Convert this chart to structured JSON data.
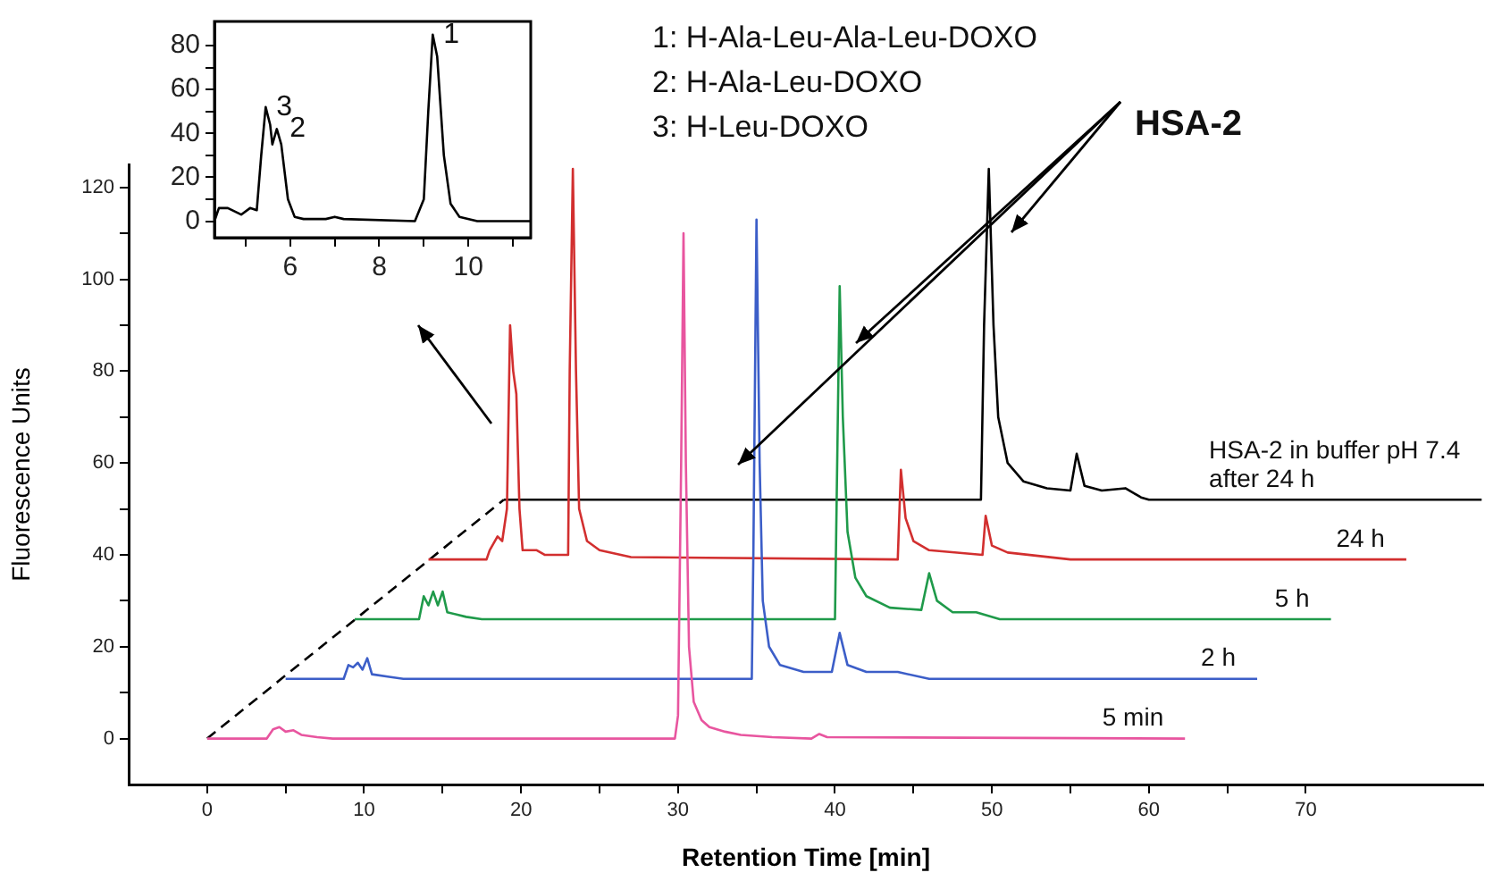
{
  "chart_data": [
    {
      "type": "line",
      "xlabel": "Retention Time [min]",
      "ylabel": "Fluorescence Units",
      "xlim": [
        -5,
        81.3
      ],
      "ylim": [
        -10,
        125
      ],
      "xticks": [
        0,
        {
          "value": 5,
          "label": null
        },
        10,
        {
          "value": 15,
          "label": null
        },
        20,
        {
          "value": 25,
          "label": null
        },
        30,
        {
          "value": 35,
          "label": null
        },
        40,
        {
          "value": 45,
          "label": null
        },
        50,
        {
          "value": 55,
          "label": null
        },
        60,
        {
          "value": 65,
          "label": null
        },
        70
      ],
      "yticks": [
        0,
        {
          "value": 10,
          "label": null
        },
        20,
        {
          "value": 30,
          "label": null
        },
        40,
        {
          "value": 50,
          "label": null
        },
        60,
        {
          "value": 70,
          "label": null
        },
        80,
        {
          "value": 90,
          "label": null
        },
        100,
        {
          "value": 110,
          "label": null
        },
        120
      ],
      "grid": false,
      "legend": false,
      "marker": "none",
      "annotations": [
        "1: H-Ala-Leu-Ala-Leu-DOXO",
        "2: H-Ala-Leu-DOXO",
        "3: H-Leu-DOXO",
        "HSA-2"
      ],
      "series": [
        {
          "name": "5 min",
          "color": "#e8559f",
          "x": [
            0,
            3.8,
            4.2,
            4.6,
            5,
            5.5,
            6,
            7,
            8,
            29.8,
            30,
            30.2,
            30.35,
            30.5,
            30.7,
            31,
            31.5,
            32,
            33,
            34,
            36,
            38.5,
            39,
            39.5,
            62.3
          ],
          "values": [
            0,
            0,
            2,
            2.5,
            1.5,
            1.8,
            0.8,
            0.3,
            0,
            0,
            5,
            60,
            110,
            60,
            20,
            8,
            4,
            2.5,
            1.5,
            0.8,
            0.3,
            0,
            1,
            0.3,
            0
          ]
        },
        {
          "name": "2 h",
          "color": "#3c5ec8",
          "x": [
            5,
            8.7,
            9,
            9.3,
            9.6,
            9.9,
            10.2,
            10.5,
            11.5,
            12.5,
            34.7,
            34.8,
            35,
            35.2,
            35.4,
            35.8,
            36.5,
            38,
            39.8,
            40.3,
            40.8,
            42,
            44,
            46,
            66.9
          ],
          "values": [
            13,
            13,
            16,
            15.5,
            16.5,
            15,
            17.5,
            14,
            13.5,
            13,
            13,
            40,
            113,
            60,
            30,
            20,
            16,
            14.5,
            14.5,
            23,
            16,
            14.5,
            14.5,
            13,
            13
          ]
        },
        {
          "name": "5 h",
          "color": "#1f9a4a",
          "x": [
            9.4,
            13.5,
            13.8,
            14.1,
            14.4,
            14.7,
            15,
            15.3,
            16.5,
            17.5,
            40,
            40.1,
            40.3,
            40.5,
            40.8,
            41.3,
            42,
            43.5,
            45.5,
            46,
            46.5,
            47.5,
            49,
            50.5,
            71.6
          ],
          "values": [
            26,
            26,
            31,
            29,
            32,
            29,
            32,
            27.5,
            26.5,
            26,
            26,
            50,
            98.5,
            70,
            45,
            35,
            31,
            28.5,
            28,
            36,
            30,
            27.5,
            27.5,
            26,
            26
          ]
        },
        {
          "name": "24 h",
          "color": "#d22f2f",
          "x": [
            14.1,
            17.8,
            18,
            18.5,
            18.8,
            19.1,
            19.3,
            19.5,
            19.7,
            19.9,
            20.1,
            21,
            21.5,
            23,
            23.1,
            23.3,
            23.5,
            23.7,
            24.2,
            25,
            27,
            44,
            44.2,
            44.5,
            45,
            46,
            49.4,
            49.6,
            50,
            51,
            55,
            76.4
          ],
          "values": [
            39,
            39,
            41,
            44,
            43,
            50,
            90,
            80,
            75,
            50,
            41,
            41,
            40,
            40,
            80,
            124,
            80,
            50,
            43,
            41,
            39.5,
            39,
            58.5,
            48,
            43,
            41,
            40,
            48.5,
            42,
            40.5,
            39,
            39
          ]
        },
        {
          "name": "HSA-2 in buffer pH 7.4 after 24 h",
          "color": "#000000",
          "x": [
            18.9,
            49.3,
            49.5,
            49.8,
            50.1,
            50.4,
            51,
            52,
            53.5,
            55,
            55.4,
            55.9,
            57,
            58.5,
            59.5,
            60,
            81.2
          ],
          "values": [
            52,
            52,
            90,
            124,
            90,
            70,
            60,
            56,
            54.5,
            54,
            62,
            55,
            54,
            54.5,
            52.5,
            52,
            52
          ]
        },
        {
          "color": "#000000",
          "line_style": "dashed",
          "x": [
            0,
            18.9
          ],
          "values": [
            0,
            52
          ]
        }
      ]
    },
    {
      "type": "line",
      "xlim": [
        4.3,
        11.4
      ],
      "ylim": [
        -7.5,
        91
      ],
      "xticks": [
        {
          "value": 5,
          "label": null
        },
        6,
        {
          "value": 7,
          "label": null
        },
        8,
        {
          "value": 9,
          "label": null
        },
        10,
        {
          "value": 11,
          "label": null
        }
      ],
      "yticks": [
        0,
        {
          "value": 10,
          "label": null
        },
        20,
        {
          "value": 30,
          "label": null
        },
        40,
        {
          "value": 50,
          "label": null
        },
        60,
        {
          "value": 70,
          "label": null
        },
        80
      ],
      "grid": false,
      "legend": false,
      "marker": "none",
      "annotations": [
        {
          "text": "1",
          "x": 9.2,
          "y": 85
        },
        {
          "text": "3",
          "x": 5.45,
          "y": 52
        },
        {
          "text": "2",
          "x": 5.75,
          "y": 42
        }
      ],
      "series": [
        {
          "color": "#000000",
          "x": [
            4.3,
            4.4,
            4.6,
            4.9,
            5.1,
            5.25,
            5.35,
            5.45,
            5.55,
            5.6,
            5.7,
            5.8,
            5.95,
            6.1,
            6.3,
            6.8,
            7,
            7.2,
            8.8,
            9,
            9.1,
            9.2,
            9.3,
            9.45,
            9.6,
            9.8,
            10.2,
            11.4
          ],
          "values": [
            0,
            6,
            6,
            3,
            6,
            5,
            30,
            52,
            44,
            35,
            42,
            35,
            10,
            2,
            1,
            1,
            2,
            1,
            0,
            10,
            50,
            85,
            75,
            30,
            8,
            2,
            0,
            0
          ]
        }
      ]
    }
  ]
}
